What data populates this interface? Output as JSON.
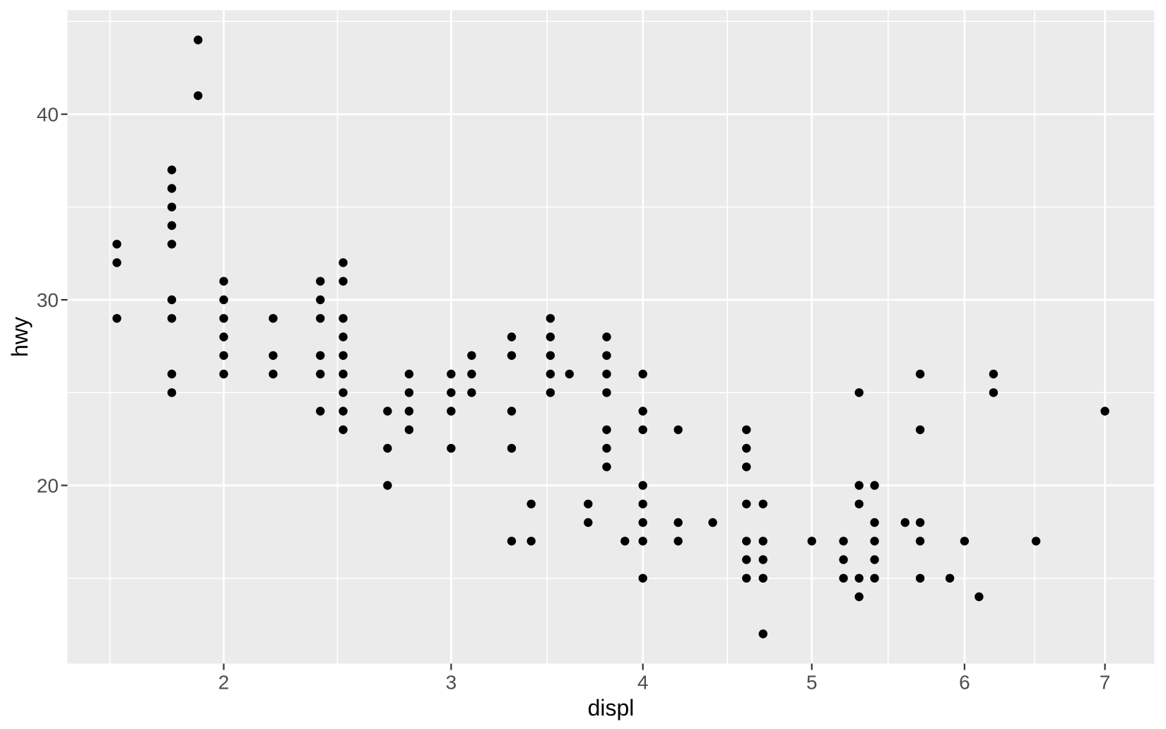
{
  "chart_data": {
    "type": "scatter",
    "title": "",
    "xlabel": "displ",
    "ylabel": "hwy",
    "x_transform": "sqrt",
    "x_ticks": [
      2,
      3,
      4,
      5,
      6,
      7
    ],
    "y_ticks": [
      20,
      30,
      40
    ],
    "x_range": [
      1.6,
      7.0
    ],
    "y_range": [
      12,
      44
    ],
    "expansion": 0.05,
    "grid": true,
    "legend_position": "none",
    "points": [
      [
        1.6,
        29
      ],
      [
        1.6,
        32
      ],
      [
        1.6,
        33
      ],
      [
        1.8,
        25
      ],
      [
        1.8,
        26
      ],
      [
        1.8,
        29
      ],
      [
        1.8,
        30
      ],
      [
        1.8,
        33
      ],
      [
        1.8,
        34
      ],
      [
        1.8,
        35
      ],
      [
        1.8,
        36
      ],
      [
        1.8,
        37
      ],
      [
        1.9,
        41
      ],
      [
        1.9,
        44
      ],
      [
        2.0,
        26
      ],
      [
        2.0,
        27
      ],
      [
        2.0,
        28
      ],
      [
        2.0,
        29
      ],
      [
        2.0,
        30
      ],
      [
        2.0,
        31
      ],
      [
        2.2,
        26
      ],
      [
        2.2,
        27
      ],
      [
        2.2,
        29
      ],
      [
        2.4,
        24
      ],
      [
        2.4,
        26
      ],
      [
        2.4,
        27
      ],
      [
        2.4,
        29
      ],
      [
        2.4,
        30
      ],
      [
        2.4,
        31
      ],
      [
        2.5,
        23
      ],
      [
        2.5,
        24
      ],
      [
        2.5,
        25
      ],
      [
        2.5,
        26
      ],
      [
        2.5,
        27
      ],
      [
        2.5,
        28
      ],
      [
        2.5,
        29
      ],
      [
        2.5,
        31
      ],
      [
        2.5,
        32
      ],
      [
        2.7,
        20
      ],
      [
        2.7,
        22
      ],
      [
        2.7,
        24
      ],
      [
        2.8,
        23
      ],
      [
        2.8,
        24
      ],
      [
        2.8,
        25
      ],
      [
        2.8,
        26
      ],
      [
        3.0,
        22
      ],
      [
        3.0,
        24
      ],
      [
        3.0,
        25
      ],
      [
        3.0,
        26
      ],
      [
        3.1,
        25
      ],
      [
        3.1,
        26
      ],
      [
        3.1,
        27
      ],
      [
        3.3,
        17
      ],
      [
        3.3,
        22
      ],
      [
        3.3,
        24
      ],
      [
        3.3,
        27
      ],
      [
        3.3,
        28
      ],
      [
        3.4,
        17
      ],
      [
        3.4,
        19
      ],
      [
        3.5,
        25
      ],
      [
        3.5,
        26
      ],
      [
        3.5,
        27
      ],
      [
        3.5,
        28
      ],
      [
        3.5,
        29
      ],
      [
        3.6,
        26
      ],
      [
        3.7,
        18
      ],
      [
        3.7,
        19
      ],
      [
        3.8,
        21
      ],
      [
        3.8,
        22
      ],
      [
        3.8,
        23
      ],
      [
        3.8,
        25
      ],
      [
        3.8,
        26
      ],
      [
        3.8,
        27
      ],
      [
        3.8,
        28
      ],
      [
        3.9,
        17
      ],
      [
        4.0,
        15
      ],
      [
        4.0,
        17
      ],
      [
        4.0,
        18
      ],
      [
        4.0,
        19
      ],
      [
        4.0,
        20
      ],
      [
        4.0,
        23
      ],
      [
        4.0,
        24
      ],
      [
        4.0,
        26
      ],
      [
        4.2,
        17
      ],
      [
        4.2,
        18
      ],
      [
        4.2,
        23
      ],
      [
        4.4,
        18
      ],
      [
        4.6,
        15
      ],
      [
        4.6,
        16
      ],
      [
        4.6,
        17
      ],
      [
        4.6,
        19
      ],
      [
        4.6,
        21
      ],
      [
        4.6,
        22
      ],
      [
        4.6,
        23
      ],
      [
        4.7,
        12
      ],
      [
        4.7,
        15
      ],
      [
        4.7,
        16
      ],
      [
        4.7,
        17
      ],
      [
        4.7,
        19
      ],
      [
        5.0,
        17
      ],
      [
        5.2,
        15
      ],
      [
        5.2,
        16
      ],
      [
        5.2,
        17
      ],
      [
        5.3,
        14
      ],
      [
        5.3,
        15
      ],
      [
        5.3,
        19
      ],
      [
        5.3,
        20
      ],
      [
        5.3,
        25
      ],
      [
        5.4,
        15
      ],
      [
        5.4,
        16
      ],
      [
        5.4,
        17
      ],
      [
        5.4,
        18
      ],
      [
        5.4,
        20
      ],
      [
        5.6,
        18
      ],
      [
        5.7,
        15
      ],
      [
        5.7,
        17
      ],
      [
        5.7,
        18
      ],
      [
        5.7,
        23
      ],
      [
        5.7,
        26
      ],
      [
        5.9,
        15
      ],
      [
        6.0,
        17
      ],
      [
        6.1,
        14
      ],
      [
        6.2,
        25
      ],
      [
        6.2,
        26
      ],
      [
        6.5,
        17
      ],
      [
        7.0,
        24
      ]
    ]
  },
  "theme": {
    "outer_bg": "#FFFFFF",
    "panel_bg": "#EBEBEB",
    "grid_color": "#FFFFFF",
    "point_color": "#000000",
    "tick_label_color": "#4D4D4D",
    "axis_title_color": "#000000",
    "tick_mark_color": "#333333"
  }
}
